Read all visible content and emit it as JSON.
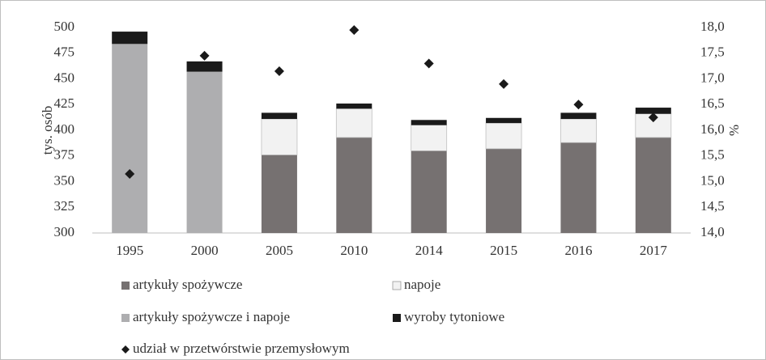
{
  "chart_data": {
    "type": "bar",
    "stacked": true,
    "categories": [
      "1995",
      "2000",
      "2005",
      "2010",
      "2014",
      "2015",
      "2016",
      "2017"
    ],
    "y_label": "tys. osób",
    "y2_label": "%",
    "ylim": [
      300,
      500
    ],
    "yticks": [
      300,
      325,
      350,
      375,
      400,
      425,
      450,
      475,
      500
    ],
    "y2lim": [
      14,
      18
    ],
    "y2ticks": [
      {
        "value": 14,
        "label": "14,0"
      },
      {
        "value": 14.5,
        "label": "14,5"
      },
      {
        "value": 15,
        "label": "15,0"
      },
      {
        "value": 15.5,
        "label": "15,5"
      },
      {
        "value": 16,
        "label": "16,0"
      },
      {
        "value": 16.5,
        "label": "16,5"
      },
      {
        "value": 17,
        "label": "17,0"
      },
      {
        "value": 17.5,
        "label": "17,5"
      },
      {
        "value": 18,
        "label": "18,0"
      }
    ],
    "grid": false,
    "series": [
      {
        "name": "artykuły spożywcze",
        "color": "#767171",
        "values": [
          null,
          null,
          376,
          393,
          380,
          382,
          388,
          393
        ]
      },
      {
        "name": "napoje",
        "color": "#f2f2f2",
        "values": [
          null,
          null,
          35,
          28,
          25,
          25,
          23,
          23
        ]
      },
      {
        "name": "artykuły spożywcze i napoje",
        "color": "#aeaeb0",
        "values": [
          484,
          457,
          null,
          null,
          null,
          null,
          null,
          null
        ]
      },
      {
        "name": "wyroby tytoniowe",
        "color": "#1a1a1a",
        "values": [
          12,
          10,
          6,
          5,
          5,
          5,
          6,
          6
        ]
      },
      {
        "name": "udział w przetwórstwie przemysłowym",
        "color": "#1a1a1a",
        "type": "scatter",
        "axis": "y2",
        "values": [
          15.15,
          17.45,
          17.15,
          17.95,
          17.3,
          16.9,
          16.5,
          16.25
        ]
      }
    ]
  }
}
